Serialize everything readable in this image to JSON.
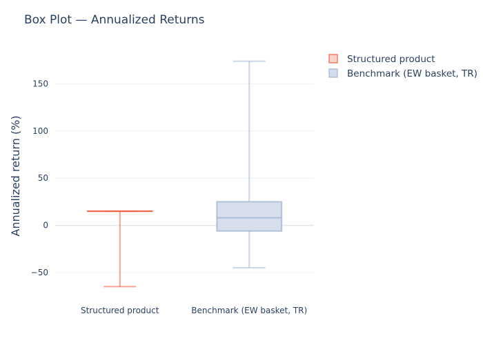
{
  "chart_data": {
    "type": "box",
    "title": "Box Plot — Annualized Returns",
    "xlabel": "",
    "ylabel": "Annualized return (%)",
    "ylim": [
      -72,
      195
    ],
    "yticks": [
      150,
      100,
      50,
      0,
      -50
    ],
    "ytick_labels": [
      "150",
      "100",
      "50",
      "0",
      "−50"
    ],
    "grid": true,
    "legend_position": "top-right",
    "categories": [
      "Structured product",
      "Benchmark (EW basket, TR)"
    ],
    "series": [
      {
        "name": "Structured product",
        "color": "#ef553b",
        "fill": "#fcd3cb",
        "whisker_low": -65,
        "q1": 15,
        "median": 15,
        "q3": 15,
        "whisker_high": 15
      },
      {
        "name": "Benchmark (EW basket, TR)",
        "color": "#9fb3cf",
        "fill": "#d3dcea",
        "whisker_low": -45,
        "q1": -6,
        "median": 8,
        "q3": 25,
        "whisker_high": 174
      }
    ]
  }
}
